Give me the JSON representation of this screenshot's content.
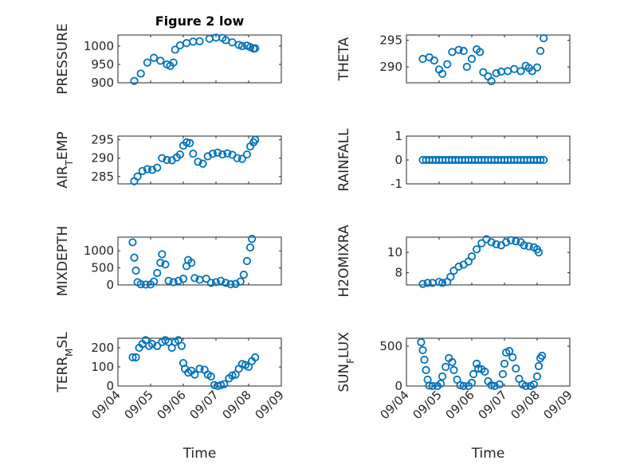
{
  "colors": {
    "series": "#0072BD",
    "axes": "#262626",
    "grid": "#BFBFBF"
  },
  "chart_data": [
    {
      "type": "scatter",
      "panel": "top-left",
      "title": "Figure 2 low",
      "ylabel": "PRESSURE",
      "ylim": [
        900,
        1030
      ],
      "yticks": [
        900,
        950,
        1000
      ],
      "xlim": [
        "09/04",
        "09/08"
      ],
      "xticks": [
        "09/04",
        "09/05",
        "09/06",
        "09/07",
        "09/08"
      ],
      "grid": true,
      "marker": "open-circle",
      "show_xticklabels": false,
      "points": [
        [
          4.5,
          905
        ],
        [
          4.7,
          925
        ],
        [
          4.9,
          955
        ],
        [
          5.1,
          968
        ],
        [
          5.3,
          960
        ],
        [
          5.5,
          950
        ],
        [
          5.6,
          946
        ],
        [
          5.7,
          955
        ],
        [
          5.75,
          990
        ],
        [
          5.9,
          1002
        ],
        [
          6.1,
          1008
        ],
        [
          6.3,
          1012
        ],
        [
          6.5,
          1013
        ],
        [
          6.8,
          1020
        ],
        [
          7.0,
          1023
        ],
        [
          7.2,
          1022
        ],
        [
          7.3,
          1016
        ],
        [
          7.5,
          1010
        ],
        [
          7.7,
          1003
        ],
        [
          7.8,
          1000
        ],
        [
          7.95,
          1001
        ],
        [
          8.05,
          997
        ],
        [
          8.15,
          993
        ],
        [
          8.2,
          994
        ]
      ]
    },
    {
      "type": "scatter",
      "panel": "top-right",
      "title": "",
      "ylabel": "THETA",
      "ylim": [
        287,
        296
      ],
      "yticks": [
        290,
        295
      ],
      "xlim": [
        "09/04",
        "09/08"
      ],
      "xticks": [
        "09/04",
        "09/05",
        "09/06",
        "09/07",
        "09/08"
      ],
      "grid": true,
      "marker": "open-circle",
      "show_xticklabels": false,
      "points": [
        [
          4.5,
          291.5
        ],
        [
          4.7,
          291.8
        ],
        [
          4.85,
          291.2
        ],
        [
          5.0,
          289.5
        ],
        [
          5.1,
          288.7
        ],
        [
          5.25,
          290.5
        ],
        [
          5.4,
          292.8
        ],
        [
          5.6,
          293.2
        ],
        [
          5.75,
          293.0
        ],
        [
          5.85,
          290.0
        ],
        [
          6.0,
          291.5
        ],
        [
          6.15,
          293.3
        ],
        [
          6.25,
          292.8
        ],
        [
          6.35,
          289.0
        ],
        [
          6.5,
          288.2
        ],
        [
          6.6,
          287.3
        ],
        [
          6.75,
          288.8
        ],
        [
          6.9,
          289.1
        ],
        [
          7.1,
          289.2
        ],
        [
          7.3,
          289.6
        ],
        [
          7.5,
          289.2
        ],
        [
          7.65,
          290.2
        ],
        [
          7.75,
          289.8
        ],
        [
          7.85,
          289.2
        ],
        [
          8.0,
          289.9
        ],
        [
          8.1,
          293.0
        ],
        [
          8.2,
          295.4
        ]
      ]
    },
    {
      "type": "scatter",
      "panel": "row2-left",
      "title": "",
      "ylabel": "AIR_TEMP",
      "ylim": [
        283,
        296
      ],
      "yticks": [
        285,
        290,
        295
      ],
      "xlim": [
        "09/04",
        "09/08"
      ],
      "xticks": [
        "09/04",
        "09/05",
        "09/06",
        "09/07",
        "09/08"
      ],
      "grid": true,
      "marker": "open-circle",
      "show_xticklabels": false,
      "points": [
        [
          4.5,
          283.7
        ],
        [
          4.6,
          285.0
        ],
        [
          4.75,
          286.5
        ],
        [
          4.9,
          287.0
        ],
        [
          5.05,
          286.8
        ],
        [
          5.2,
          287.4
        ],
        [
          5.35,
          290.0
        ],
        [
          5.5,
          289.5
        ],
        [
          5.65,
          289.4
        ],
        [
          5.8,
          290.2
        ],
        [
          5.9,
          291.0
        ],
        [
          6.0,
          293.4
        ],
        [
          6.1,
          294.3
        ],
        [
          6.2,
          294.1
        ],
        [
          6.3,
          291.2
        ],
        [
          6.45,
          289.0
        ],
        [
          6.6,
          288.5
        ],
        [
          6.75,
          290.5
        ],
        [
          6.9,
          291.2
        ],
        [
          7.05,
          291.5
        ],
        [
          7.2,
          291.0
        ],
        [
          7.35,
          291.3
        ],
        [
          7.5,
          290.9
        ],
        [
          7.65,
          290.0
        ],
        [
          7.8,
          289.8
        ],
        [
          7.95,
          291.0
        ],
        [
          8.05,
          293.2
        ],
        [
          8.15,
          294.3
        ],
        [
          8.2,
          295.0
        ]
      ]
    },
    {
      "type": "scatter",
      "panel": "row2-right",
      "title": "",
      "ylabel": "RAINFALL",
      "ylim": [
        -1,
        1
      ],
      "yticks": [
        -1,
        0,
        1
      ],
      "xlim": [
        "09/04",
        "09/08"
      ],
      "xticks": [
        "09/04",
        "09/05",
        "09/06",
        "09/07",
        "09/08"
      ],
      "grid": true,
      "marker": "open-circle",
      "show_xticklabels": false,
      "points": [
        [
          4.5,
          0
        ],
        [
          4.6,
          0
        ],
        [
          4.7,
          0
        ],
        [
          4.8,
          0
        ],
        [
          4.9,
          0
        ],
        [
          5.0,
          0
        ],
        [
          5.1,
          0
        ],
        [
          5.2,
          0
        ],
        [
          5.3,
          0
        ],
        [
          5.4,
          0
        ],
        [
          5.5,
          0
        ],
        [
          5.6,
          0
        ],
        [
          5.7,
          0
        ],
        [
          5.8,
          0
        ],
        [
          5.9,
          0
        ],
        [
          6.0,
          0
        ],
        [
          6.1,
          0
        ],
        [
          6.2,
          0
        ],
        [
          6.3,
          0
        ],
        [
          6.4,
          0
        ],
        [
          6.5,
          0
        ],
        [
          6.6,
          0
        ],
        [
          6.7,
          0
        ],
        [
          6.8,
          0
        ],
        [
          6.9,
          0
        ],
        [
          7.0,
          0
        ],
        [
          7.1,
          0
        ],
        [
          7.2,
          0
        ],
        [
          7.3,
          0
        ],
        [
          7.4,
          0
        ],
        [
          7.5,
          0
        ],
        [
          7.6,
          0
        ],
        [
          7.7,
          0
        ],
        [
          7.8,
          0
        ],
        [
          7.9,
          0
        ],
        [
          8.0,
          0
        ],
        [
          8.1,
          0
        ],
        [
          8.2,
          0
        ]
      ]
    },
    {
      "type": "scatter",
      "panel": "row3-left",
      "title": "",
      "ylabel": "MIXDEPTH",
      "ylim": [
        0,
        1400
      ],
      "yticks": [
        0,
        500,
        1000
      ],
      "xlim": [
        "09/04",
        "09/08"
      ],
      "xticks": [
        "09/04",
        "09/05",
        "09/06",
        "09/07",
        "09/08"
      ],
      "grid": true,
      "marker": "open-circle",
      "show_xticklabels": false,
      "points": [
        [
          4.45,
          1250
        ],
        [
          4.5,
          800
        ],
        [
          4.55,
          420
        ],
        [
          4.6,
          80
        ],
        [
          4.7,
          20
        ],
        [
          4.85,
          10
        ],
        [
          5.0,
          15
        ],
        [
          5.1,
          100
        ],
        [
          5.2,
          350
        ],
        [
          5.3,
          650
        ],
        [
          5.35,
          900
        ],
        [
          5.45,
          600
        ],
        [
          5.55,
          120
        ],
        [
          5.7,
          80
        ],
        [
          5.85,
          120
        ],
        [
          6.0,
          180
        ],
        [
          6.1,
          550
        ],
        [
          6.15,
          730
        ],
        [
          6.25,
          650
        ],
        [
          6.35,
          200
        ],
        [
          6.5,
          150
        ],
        [
          6.7,
          180
        ],
        [
          6.85,
          60
        ],
        [
          7.0,
          80
        ],
        [
          7.15,
          120
        ],
        [
          7.3,
          60
        ],
        [
          7.45,
          20
        ],
        [
          7.6,
          30
        ],
        [
          7.75,
          100
        ],
        [
          7.85,
          300
        ],
        [
          7.95,
          700
        ],
        [
          8.05,
          1100
        ],
        [
          8.1,
          1350
        ]
      ]
    },
    {
      "type": "scatter",
      "panel": "row3-right",
      "title": "",
      "ylabel": "H2OMIXRA",
      "ylim": [
        6.8,
        11.5
      ],
      "yticks": [
        8,
        10
      ],
      "xlim": [
        "09/04",
        "09/08"
      ],
      "xticks": [
        "09/04",
        "09/05",
        "09/06",
        "09/07",
        "09/08"
      ],
      "grid": true,
      "marker": "open-circle",
      "show_xticklabels": false,
      "points": [
        [
          4.5,
          6.9
        ],
        [
          4.65,
          7.0
        ],
        [
          4.8,
          7.0
        ],
        [
          5.0,
          7.1
        ],
        [
          5.1,
          7.0
        ],
        [
          5.25,
          7.1
        ],
        [
          5.35,
          7.6
        ],
        [
          5.45,
          8.2
        ],
        [
          5.6,
          8.6
        ],
        [
          5.75,
          8.8
        ],
        [
          5.9,
          9.1
        ],
        [
          6.0,
          9.6
        ],
        [
          6.15,
          10.3
        ],
        [
          6.3,
          10.9
        ],
        [
          6.45,
          11.3
        ],
        [
          6.6,
          11.0
        ],
        [
          6.75,
          10.8
        ],
        [
          6.9,
          10.7
        ],
        [
          7.05,
          11.0
        ],
        [
          7.2,
          11.2
        ],
        [
          7.35,
          11.1
        ],
        [
          7.5,
          11.0
        ],
        [
          7.6,
          10.7
        ],
        [
          7.75,
          10.6
        ],
        [
          7.9,
          10.5
        ],
        [
          8.0,
          10.3
        ],
        [
          8.05,
          10.0
        ]
      ]
    },
    {
      "type": "scatter",
      "panel": "bottom-left",
      "title": "",
      "ylabel": "TERR_MSL",
      "ylim": [
        0,
        250
      ],
      "yticks": [
        0,
        100,
        200
      ],
      "xlim": [
        "09/04",
        "09/08"
      ],
      "xticks": [
        "09/04",
        "09/05",
        "09/06",
        "09/07",
        "09/08"
      ],
      "xlabel": "Time",
      "grid": true,
      "marker": "open-circle",
      "show_xticklabels": true,
      "points": [
        [
          4.45,
          150
        ],
        [
          4.55,
          150
        ],
        [
          4.65,
          200
        ],
        [
          4.75,
          220
        ],
        [
          4.85,
          240
        ],
        [
          4.95,
          210
        ],
        [
          5.05,
          220
        ],
        [
          5.2,
          210
        ],
        [
          5.35,
          230
        ],
        [
          5.45,
          240
        ],
        [
          5.55,
          230
        ],
        [
          5.65,
          200
        ],
        [
          5.75,
          230
        ],
        [
          5.85,
          240
        ],
        [
          5.95,
          210
        ],
        [
          6.0,
          120
        ],
        [
          6.05,
          90
        ],
        [
          6.15,
          70
        ],
        [
          6.25,
          80
        ],
        [
          6.35,
          60
        ],
        [
          6.5,
          90
        ],
        [
          6.65,
          85
        ],
        [
          6.75,
          60
        ],
        [
          6.85,
          50
        ],
        [
          6.95,
          5
        ],
        [
          7.05,
          0
        ],
        [
          7.15,
          5
        ],
        [
          7.25,
          10
        ],
        [
          7.4,
          40
        ],
        [
          7.5,
          55
        ],
        [
          7.6,
          60
        ],
        [
          7.7,
          90
        ],
        [
          7.8,
          115
        ],
        [
          7.9,
          110
        ],
        [
          8.0,
          100
        ],
        [
          8.1,
          130
        ],
        [
          8.2,
          150
        ]
      ]
    },
    {
      "type": "scatter",
      "panel": "bottom-right",
      "title": "",
      "ylabel": "SUN_FLUX",
      "ylim": [
        0,
        600
      ],
      "yticks": [
        0,
        500
      ],
      "xlim": [
        "09/04",
        "09/08"
      ],
      "xticks": [
        "09/04",
        "09/05",
        "09/06",
        "09/07",
        "09/08"
      ],
      "xlabel": "Time",
      "grid": true,
      "marker": "open-circle",
      "show_xticklabels": true,
      "points": [
        [
          4.45,
          550
        ],
        [
          4.5,
          450
        ],
        [
          4.55,
          330
        ],
        [
          4.6,
          200
        ],
        [
          4.65,
          80
        ],
        [
          4.7,
          5
        ],
        [
          4.8,
          0
        ],
        [
          4.95,
          0
        ],
        [
          5.05,
          30
        ],
        [
          5.1,
          120
        ],
        [
          5.2,
          240
        ],
        [
          5.3,
          350
        ],
        [
          5.4,
          300
        ],
        [
          5.45,
          200
        ],
        [
          5.55,
          80
        ],
        [
          5.65,
          10
        ],
        [
          5.75,
          0
        ],
        [
          5.9,
          0
        ],
        [
          6.0,
          40
        ],
        [
          6.05,
          150
        ],
        [
          6.15,
          280
        ],
        [
          6.2,
          220
        ],
        [
          6.3,
          210
        ],
        [
          6.4,
          180
        ],
        [
          6.5,
          60
        ],
        [
          6.6,
          10
        ],
        [
          6.7,
          0
        ],
        [
          6.85,
          20
        ],
        [
          6.95,
          150
        ],
        [
          7.0,
          280
        ],
        [
          7.05,
          420
        ],
        [
          7.15,
          440
        ],
        [
          7.25,
          360
        ],
        [
          7.35,
          220
        ],
        [
          7.45,
          90
        ],
        [
          7.55,
          20
        ],
        [
          7.65,
          0
        ],
        [
          7.8,
          0
        ],
        [
          7.9,
          20
        ],
        [
          8.0,
          120
        ],
        [
          8.05,
          250
        ],
        [
          8.1,
          350
        ],
        [
          8.15,
          380
        ]
      ]
    }
  ]
}
